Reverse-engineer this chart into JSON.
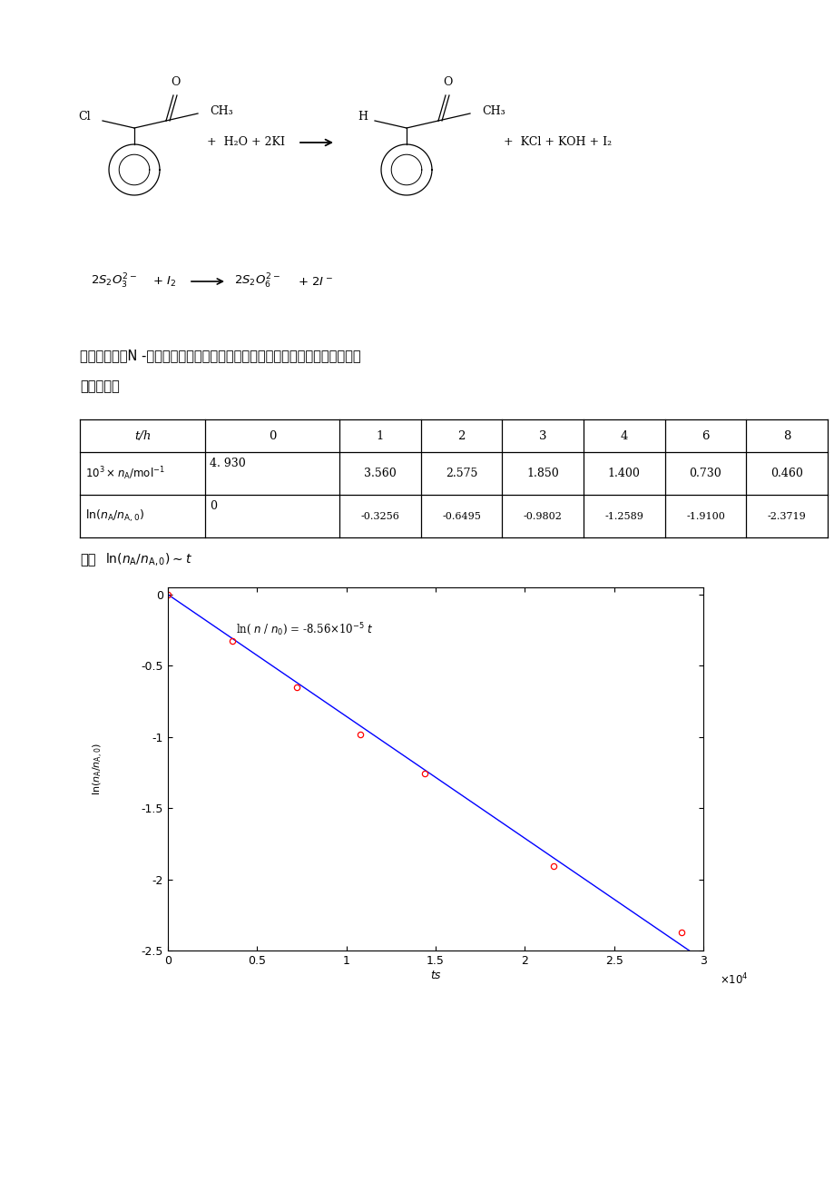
{
  "background_color": "#ffffff",
  "chinese_text1": "根据反应式，N -氯代乙酰苯胺的物质的量应为所消耗硫代硫酸钠的物质的量的",
  "chinese_text2": "二分之一，",
  "table_headers": [
    "t/h",
    "0",
    "1",
    "2",
    "3",
    "4",
    "6",
    "8"
  ],
  "row1_values": [
    "4.930",
    "3.560",
    "2.575",
    "1.850",
    "1.400",
    "0.730",
    "0.460"
  ],
  "row2_values": [
    "0",
    "-0.3256",
    "-0.6495",
    "-0.9802",
    "-1.2589",
    "-1.9100",
    "-2.3719"
  ],
  "t_seconds": [
    0,
    3600,
    7200,
    10800,
    14400,
    21600,
    28800
  ],
  "ln_values": [
    0.0,
    -0.3256,
    -0.6495,
    -0.9802,
    -1.2589,
    -1.91,
    -2.3719
  ],
  "slope": -8.56e-05,
  "data_color": "#ff0000",
  "line_color": "#0000ff",
  "marker_size": 4.5,
  "line_width": 1.0
}
